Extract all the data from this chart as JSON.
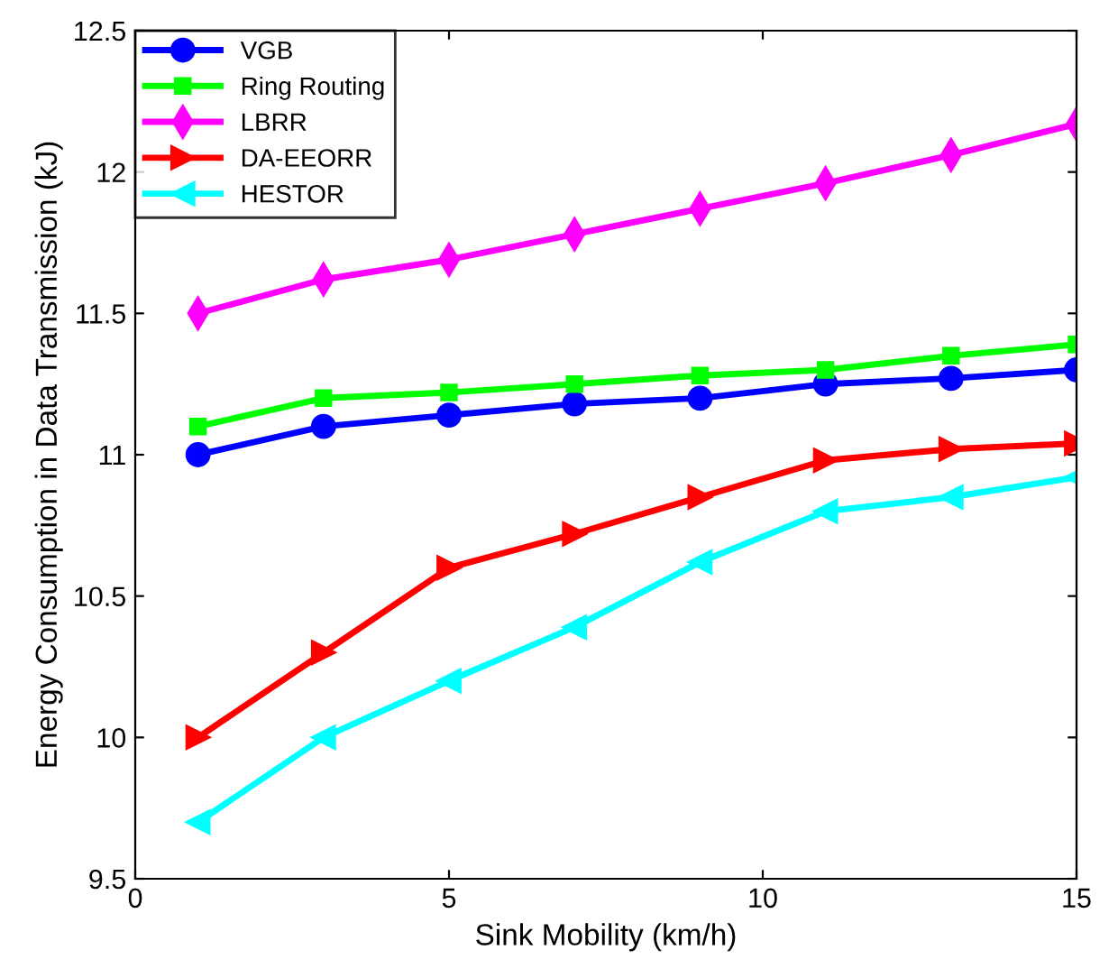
{
  "chart_data": {
    "type": "line",
    "xlabel": "Sink Mobility (km/h)",
    "ylabel": "Energy Consumption in Data Transmission (kJ)",
    "x": [
      1,
      3,
      5,
      7,
      9,
      11,
      13,
      15
    ],
    "xlim": [
      0,
      15
    ],
    "xticks": [
      0,
      5,
      10,
      15
    ],
    "ylim": [
      9.5,
      12.5
    ],
    "yticks": [
      9.5,
      10,
      10.5,
      11,
      11.5,
      12,
      12.5
    ],
    "grid": false,
    "legend": "top left",
    "line_style": "solid",
    "series": [
      {
        "name": "VGB",
        "color": "#0000ff",
        "marker": "circle",
        "values": [
          11.0,
          11.1,
          11.14,
          11.18,
          11.2,
          11.25,
          11.27,
          11.3
        ]
      },
      {
        "name": "Ring Routing",
        "color": "#00ff00",
        "marker": "square",
        "values": [
          11.1,
          11.2,
          11.22,
          11.25,
          11.28,
          11.3,
          11.35,
          11.39
        ]
      },
      {
        "name": "LBRR",
        "color": "#ff00ff",
        "marker": "diamond",
        "values": [
          11.5,
          11.62,
          11.69,
          11.78,
          11.87,
          11.96,
          12.06,
          12.17
        ]
      },
      {
        "name": "DA-EEORR",
        "color": "#ff0000",
        "marker": "triangle-right",
        "values": [
          10.0,
          10.3,
          10.6,
          10.72,
          10.85,
          10.98,
          11.02,
          11.04
        ]
      },
      {
        "name": "HESTOR",
        "color": "#00ffff",
        "marker": "triangle-left",
        "values": [
          9.7,
          10.0,
          10.2,
          10.39,
          10.62,
          10.8,
          10.85,
          10.92
        ]
      }
    ]
  }
}
